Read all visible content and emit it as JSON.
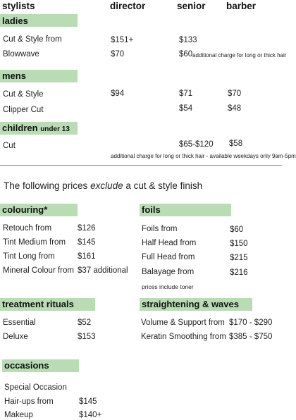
{
  "columns": {
    "stylists": "stylists",
    "director": "director",
    "senior": "senior",
    "barber": "barber"
  },
  "ladies": {
    "title": "ladies",
    "rows": [
      {
        "name": "Cut & Style from",
        "director": "$151+",
        "senior": "$133"
      },
      {
        "name": "Blowwave",
        "director": "$70",
        "senior": "$60",
        "note": "additional charge for long or thick hair"
      }
    ]
  },
  "mens": {
    "title": "mens",
    "rows": [
      {
        "name": "Cut & Style",
        "director": "$94",
        "senior": "$71",
        "barber": "$70"
      },
      {
        "name": "Clipper Cut",
        "senior": "$54",
        "barber": "$48"
      }
    ]
  },
  "children": {
    "title": "children",
    "subtitle": "under 13",
    "rows": [
      {
        "name": "Cut",
        "senior": "$65-$120",
        "barber": "$58"
      }
    ],
    "note": "additional charge for long or thick hair - available weekdays only 9am-5pm"
  },
  "intro": {
    "before": "The following prices ",
    "emphasis": "exclude",
    "after": " a cut & style finish"
  },
  "colouring": {
    "title": "colouring*",
    "rows": [
      {
        "name": "Retouch from",
        "price": "$126"
      },
      {
        "name": "Tint Medium from",
        "price": "$145"
      },
      {
        "name": "Tint Long from",
        "price": "$161"
      },
      {
        "name": "Mineral Colour from",
        "price": "$37 additional"
      }
    ]
  },
  "foils": {
    "title": "foils",
    "rows": [
      {
        "name": "Foils from",
        "price": "$60"
      },
      {
        "name": "Half Head from",
        "price": "$150"
      },
      {
        "name": "Full Head from",
        "price": "$215"
      },
      {
        "name": "Balayage from",
        "price": "$216"
      }
    ],
    "note": "prices include toner"
  },
  "treatment": {
    "title": "treatment rituals",
    "rows": [
      {
        "name": "Essential",
        "price": "$52"
      },
      {
        "name": "Deluxe",
        "price": "$153"
      }
    ]
  },
  "straightening": {
    "title": "straightening & waves",
    "rows": [
      {
        "name": "Volume & Support from",
        "price": "$170 - $290"
      },
      {
        "name": "Keratin Smoothing from",
        "price": "$385 - $750"
      }
    ]
  },
  "occasions": {
    "title": "occasions",
    "rows": [
      {
        "name": "Special Occasion",
        "price": ""
      },
      {
        "name": "Hair-ups from",
        "price": "$145"
      },
      {
        "name": "Makeup",
        "price": "$140+"
      }
    ]
  },
  "colors": {
    "section_bar": "#b9dcb5",
    "rule": "#888888"
  }
}
